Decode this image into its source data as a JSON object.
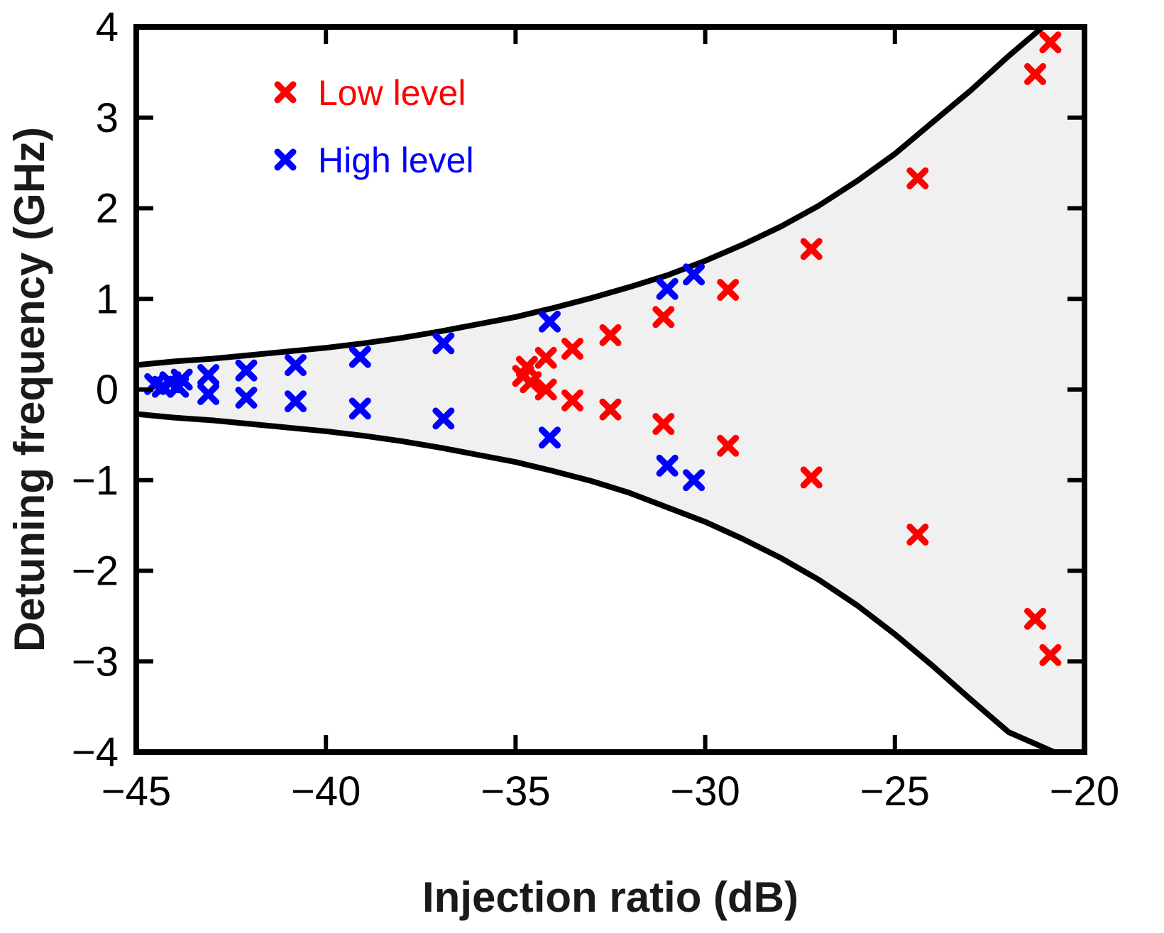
{
  "chart_data": {
    "type": "scatter",
    "title": "",
    "xlabel": "Injection ratio (dB)",
    "ylabel": "Detuning frequency (GHz)",
    "xlim": [
      -45,
      -20
    ],
    "ylim": [
      -4,
      4
    ],
    "xticks": [
      -45,
      -40,
      -35,
      -30,
      -25,
      -20
    ],
    "yticks": [
      -4,
      -3,
      -2,
      -1,
      0,
      1,
      2,
      3,
      4
    ],
    "xtick_labels": [
      "−45",
      "−40",
      "−35",
      "−30",
      "−25",
      "−20"
    ],
    "ytick_labels": [
      "−4",
      "−3",
      "−2",
      "−1",
      "0",
      "1",
      "2",
      "3",
      "4"
    ],
    "grid": false,
    "legend_position": "top-left",
    "locking_boundary": {
      "description": "shaded locking region between upper and lower boundary curves",
      "fill_color": "#f0f0f0",
      "line_color": "#000000",
      "upper": [
        [
          -45,
          0.27
        ],
        [
          -44,
          0.31
        ],
        [
          -43,
          0.34
        ],
        [
          -42,
          0.38
        ],
        [
          -41,
          0.42
        ],
        [
          -40,
          0.46
        ],
        [
          -39,
          0.51
        ],
        [
          -38,
          0.57
        ],
        [
          -37,
          0.64
        ],
        [
          -36,
          0.72
        ],
        [
          -35,
          0.8
        ],
        [
          -34,
          0.9
        ],
        [
          -33,
          1.01
        ],
        [
          -32,
          1.13
        ],
        [
          -31,
          1.26
        ],
        [
          -30,
          1.42
        ],
        [
          -29,
          1.6
        ],
        [
          -28,
          1.8
        ],
        [
          -27,
          2.03
        ],
        [
          -26,
          2.3
        ],
        [
          -25,
          2.6
        ],
        [
          -24,
          2.95
        ],
        [
          -23,
          3.3
        ],
        [
          -22,
          3.68
        ],
        [
          -21.1,
          4.0
        ]
      ],
      "lower": [
        [
          -45,
          -0.27
        ],
        [
          -44,
          -0.31
        ],
        [
          -43,
          -0.34
        ],
        [
          -42,
          -0.38
        ],
        [
          -41,
          -0.42
        ],
        [
          -40,
          -0.46
        ],
        [
          -39,
          -0.51
        ],
        [
          -38,
          -0.57
        ],
        [
          -37,
          -0.64
        ],
        [
          -36,
          -0.72
        ],
        [
          -35,
          -0.8
        ],
        [
          -34,
          -0.9
        ],
        [
          -33,
          -1.01
        ],
        [
          -32,
          -1.14
        ],
        [
          -31,
          -1.3
        ],
        [
          -30,
          -1.46
        ],
        [
          -29,
          -1.65
        ],
        [
          -28,
          -1.86
        ],
        [
          -27,
          -2.1
        ],
        [
          -26,
          -2.38
        ],
        [
          -25,
          -2.7
        ],
        [
          -24,
          -3.05
        ],
        [
          -23,
          -3.42
        ],
        [
          -22,
          -3.78
        ],
        [
          -20.8,
          -4.0
        ]
      ]
    },
    "series": [
      {
        "name": "Low level",
        "color": "#ff0000",
        "marker": "x",
        "points": [
          [
            -34.8,
            0.15
          ],
          [
            -34.7,
            0.25
          ],
          [
            -34.6,
            0.08
          ],
          [
            -34.2,
            0.35
          ],
          [
            -34.2,
            0.0
          ],
          [
            -33.5,
            0.45
          ],
          [
            -33.5,
            -0.12
          ],
          [
            -32.5,
            0.6
          ],
          [
            -32.5,
            -0.22
          ],
          [
            -31.1,
            0.8
          ],
          [
            -31.1,
            -0.38
          ],
          [
            -29.4,
            1.1
          ],
          [
            -29.4,
            -0.62
          ],
          [
            -27.2,
            1.55
          ],
          [
            -27.2,
            -0.97
          ],
          [
            -24.4,
            2.33
          ],
          [
            -24.4,
            -1.6
          ],
          [
            -21.3,
            3.48
          ],
          [
            -21.3,
            -2.53
          ],
          [
            -20.9,
            3.83
          ],
          [
            -20.9,
            -2.93
          ]
        ]
      },
      {
        "name": "High level",
        "color": "#0000ff",
        "marker": "x",
        "points": [
          [
            -44.5,
            0.06
          ],
          [
            -44.3,
            0.03
          ],
          [
            -44.1,
            0.08
          ],
          [
            -43.9,
            0.03
          ],
          [
            -43.8,
            0.11
          ],
          [
            -43.1,
            0.16
          ],
          [
            -43.1,
            -0.05
          ],
          [
            -42.1,
            0.21
          ],
          [
            -42.1,
            -0.09
          ],
          [
            -40.8,
            0.27
          ],
          [
            -40.8,
            -0.13
          ],
          [
            -39.1,
            0.36
          ],
          [
            -39.1,
            -0.21
          ],
          [
            -36.9,
            0.51
          ],
          [
            -36.9,
            -0.32
          ],
          [
            -34.1,
            0.75
          ],
          [
            -34.1,
            -0.53
          ],
          [
            -31.0,
            1.11
          ],
          [
            -31.0,
            -0.84
          ],
          [
            -30.3,
            1.27
          ],
          [
            -30.3,
            -1.0
          ]
        ]
      }
    ]
  }
}
